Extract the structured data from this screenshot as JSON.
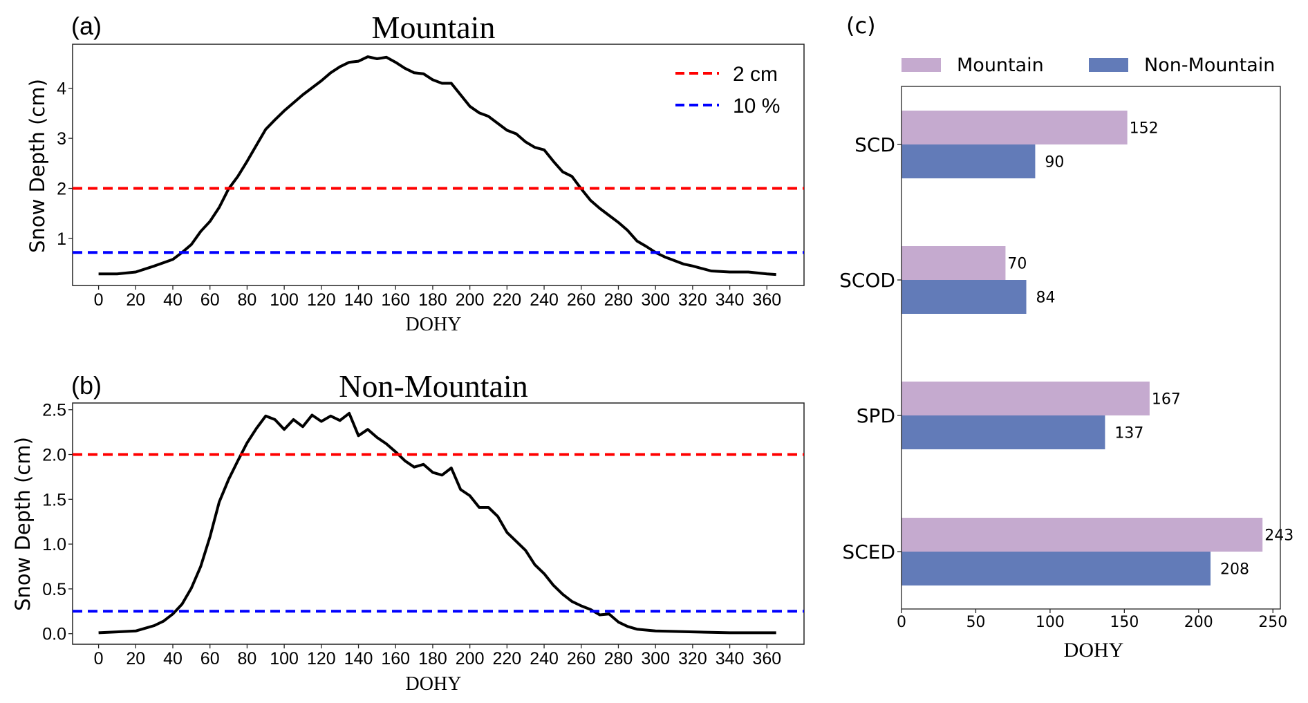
{
  "chart_data": [
    {
      "panel_label": "(a)",
      "type": "line",
      "title": "Mountain",
      "xlabel": "DOHY",
      "ylabel": "Snow Depth (cm)",
      "xlim": [
        -14,
        380
      ],
      "ylim": [
        0.06,
        4.88
      ],
      "xticks": [
        0,
        20,
        40,
        60,
        80,
        100,
        120,
        140,
        160,
        180,
        200,
        220,
        240,
        260,
        280,
        300,
        320,
        340,
        360
      ],
      "yticks": [
        1,
        2,
        3,
        4
      ],
      "grid": false,
      "legend": {
        "placement": "top-right",
        "entries": [
          {
            "label": "2 cm",
            "color": "#ff0000",
            "style": "dashed"
          },
          {
            "label": "10 %",
            "color": "#0000ff",
            "style": "dashed"
          }
        ]
      },
      "hlines": [
        {
          "y": 2.0,
          "color": "#ff0000"
        },
        {
          "y": 0.72,
          "color": "#0000ff"
        }
      ],
      "series": [
        {
          "color": "#000000",
          "x": [
            0,
            10,
            20,
            30,
            40,
            45,
            50,
            55,
            60,
            65,
            70,
            75,
            80,
            85,
            90,
            95,
            100,
            105,
            110,
            115,
            120,
            125,
            130,
            135,
            140,
            145,
            150,
            155,
            160,
            165,
            170,
            175,
            180,
            185,
            190,
            195,
            200,
            205,
            210,
            215,
            220,
            225,
            230,
            235,
            240,
            245,
            250,
            255,
            260,
            265,
            270,
            275,
            280,
            285,
            290,
            295,
            300,
            305,
            310,
            315,
            320,
            325,
            330,
            340,
            350,
            360,
            365
          ],
          "y": [
            0.29,
            0.29,
            0.33,
            0.45,
            0.58,
            0.72,
            0.88,
            1.14,
            1.34,
            1.62,
            1.99,
            2.24,
            2.54,
            2.86,
            3.18,
            3.37,
            3.55,
            3.71,
            3.87,
            4.01,
            4.15,
            4.31,
            4.43,
            4.52,
            4.54,
            4.63,
            4.59,
            4.62,
            4.52,
            4.4,
            4.31,
            4.29,
            4.17,
            4.1,
            4.1,
            3.87,
            3.64,
            3.51,
            3.44,
            3.3,
            3.16,
            3.09,
            2.93,
            2.82,
            2.77,
            2.54,
            2.33,
            2.24,
            1.99,
            1.76,
            1.6,
            1.46,
            1.32,
            1.16,
            0.95,
            0.84,
            0.72,
            0.63,
            0.56,
            0.49,
            0.45,
            0.4,
            0.35,
            0.33,
            0.33,
            0.29,
            0.28
          ]
        }
      ]
    },
    {
      "panel_label": "(b)",
      "type": "line",
      "title": "Non-Mountain",
      "xlabel": "DOHY",
      "ylabel": "Snow Depth (cm)",
      "xlim": [
        -14,
        380
      ],
      "ylim": [
        -0.118,
        2.575
      ],
      "xticks": [
        0,
        20,
        40,
        60,
        80,
        100,
        120,
        140,
        160,
        180,
        200,
        220,
        240,
        260,
        280,
        300,
        320,
        340,
        360
      ],
      "yticks": [
        "0.0",
        "0.5",
        "1.0",
        "1.5",
        "2.0",
        "2.5"
      ],
      "grid": false,
      "hlines": [
        {
          "y": 2.0,
          "color": "#ff0000"
        },
        {
          "y": 0.25,
          "color": "#0000ff"
        }
      ],
      "series": [
        {
          "color": "#000000",
          "x": [
            0,
            10,
            20,
            25,
            30,
            35,
            40,
            45,
            50,
            55,
            60,
            65,
            70,
            75,
            80,
            85,
            90,
            95,
            100,
            105,
            110,
            115,
            120,
            125,
            130,
            135,
            140,
            145,
            150,
            155,
            160,
            165,
            170,
            175,
            180,
            185,
            190,
            195,
            200,
            205,
            210,
            215,
            220,
            225,
            230,
            235,
            240,
            245,
            250,
            255,
            260,
            265,
            270,
            275,
            280,
            285,
            290,
            300,
            320,
            340,
            365
          ],
          "y": [
            0.01,
            0.02,
            0.03,
            0.06,
            0.09,
            0.14,
            0.22,
            0.33,
            0.51,
            0.75,
            1.08,
            1.47,
            1.72,
            1.93,
            2.13,
            2.29,
            2.43,
            2.39,
            2.28,
            2.39,
            2.31,
            2.44,
            2.37,
            2.43,
            2.38,
            2.46,
            2.21,
            2.28,
            2.19,
            2.12,
            2.03,
            1.93,
            1.86,
            1.89,
            1.8,
            1.77,
            1.85,
            1.61,
            1.54,
            1.41,
            1.41,
            1.31,
            1.13,
            1.03,
            0.93,
            0.77,
            0.67,
            0.54,
            0.44,
            0.36,
            0.31,
            0.27,
            0.21,
            0.22,
            0.13,
            0.08,
            0.05,
            0.03,
            0.02,
            0.01,
            0.01
          ]
        }
      ]
    },
    {
      "panel_label": "(c)",
      "type": "bar",
      "orientation": "horizontal",
      "xlabel": "DOHY",
      "xlim": [
        0,
        255
      ],
      "xticks": [
        0,
        50,
        100,
        150,
        200,
        250
      ],
      "categories": [
        "SCD",
        "SCOD",
        "SPD",
        "SCED"
      ],
      "legend": {
        "placement": "top"
      },
      "series": [
        {
          "name": "Mountain",
          "color": "#c5aacf",
          "values": [
            152,
            70,
            167,
            243
          ]
        },
        {
          "name": "Non-Mountain",
          "color": "#627bb8",
          "values": [
            90,
            84,
            137,
            208
          ]
        }
      ]
    }
  ]
}
